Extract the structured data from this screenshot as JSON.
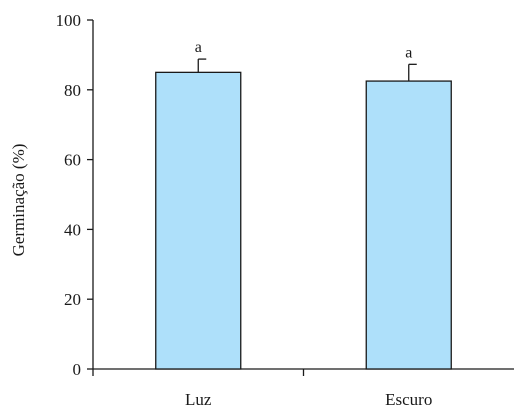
{
  "chart_data": {
    "type": "bar",
    "categories": [
      "Luz",
      "Escuro"
    ],
    "values": [
      85,
      82.5
    ],
    "errors": [
      3.8,
      4.8
    ],
    "data_labels": [
      "a",
      "a"
    ],
    "title": "",
    "xlabel": "",
    "ylabel": "Germinação (%)",
    "ylim": [
      0,
      100
    ],
    "yticks": [
      0,
      20,
      40,
      60,
      80,
      100
    ],
    "grid": false,
    "bar_color": "#aee0fa",
    "bar_edge_color": "#1a1a1a"
  }
}
